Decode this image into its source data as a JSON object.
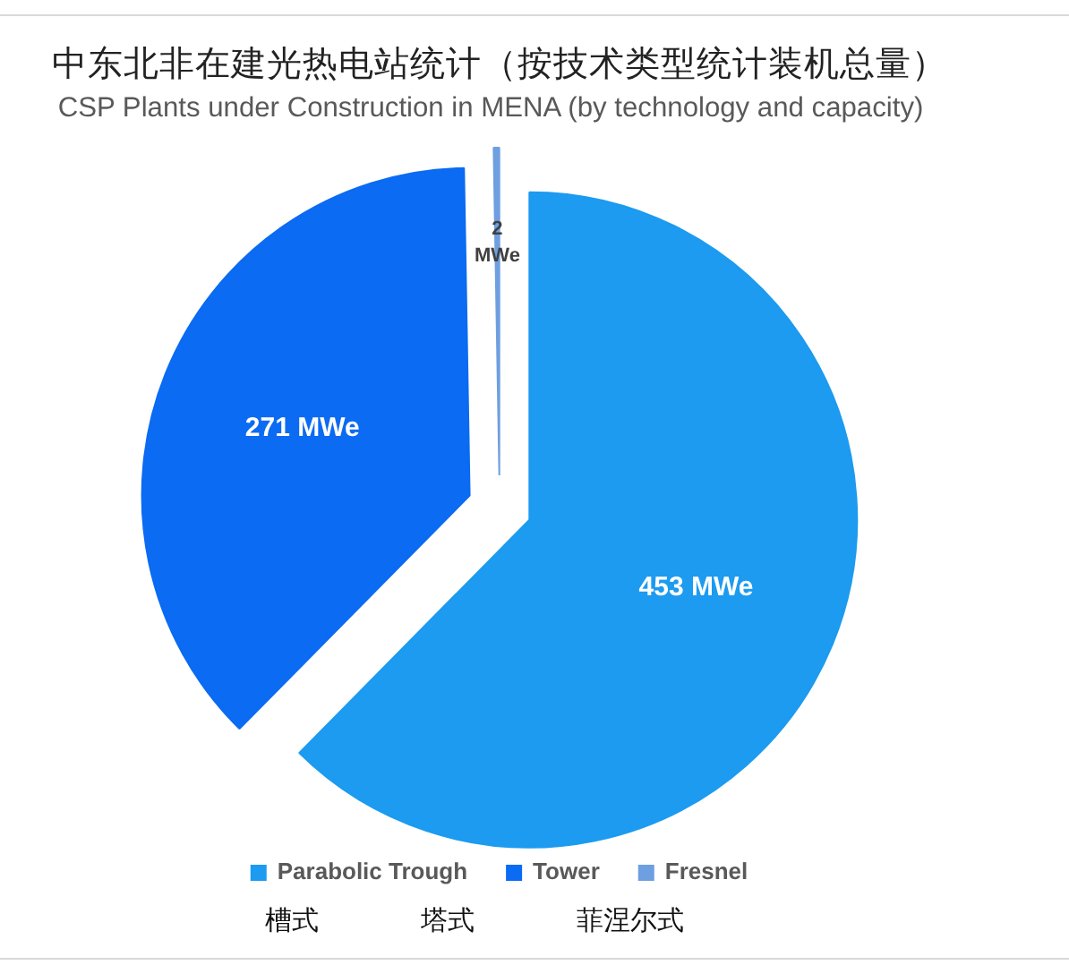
{
  "chart_data": {
    "type": "pie",
    "title": "中东北非在建光热电站统计（按技术类型统计装机总量）",
    "subtitle": "CSP Plants under Construction in MENA (by technology and capacity)",
    "categories": [
      "Parabolic Trough",
      "Tower",
      "Fresnel"
    ],
    "values": [
      453,
      271,
      2
    ],
    "colors": [
      "#1c9bf0",
      "#0b6bf2",
      "#6e9fe0"
    ],
    "value_labels": [
      "453 MWe",
      "271 MWe",
      "2 MWe"
    ],
    "legend": "bottom",
    "annotations": [
      "槽式",
      "塔式",
      "菲涅尔式"
    ]
  }
}
